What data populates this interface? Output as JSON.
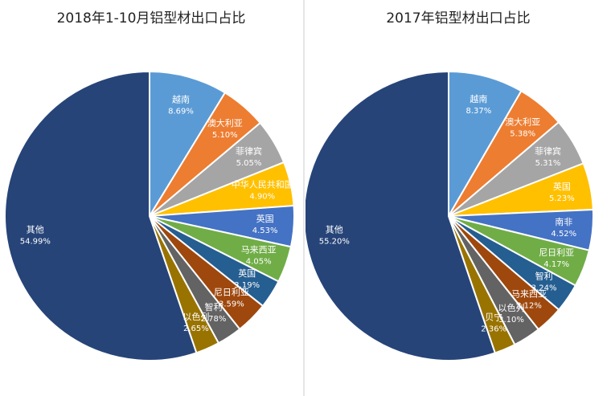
{
  "chart_data": [
    {
      "type": "pie",
      "title": "2018年1-10月铝型材出口占比",
      "slices": [
        {
          "label": "越南",
          "value": 8.69,
          "value_label": "8.69%",
          "color": "#5b9bd5"
        },
        {
          "label": "澳大利亚",
          "value": 5.1,
          "value_label": "5.10%",
          "color": "#ed7d31"
        },
        {
          "label": "菲律宾",
          "value": 5.05,
          "value_label": "5.05%",
          "color": "#a5a5a5"
        },
        {
          "label": "中华人民共和国",
          "value": 4.9,
          "value_label": "4.90%",
          "color": "#ffc000"
        },
        {
          "label": "英国",
          "value": 4.53,
          "value_label": "4.53%",
          "color": "#4472c4"
        },
        {
          "label": "马来西亚",
          "value": 4.05,
          "value_label": "4.05%",
          "color": "#70ad47"
        },
        {
          "label": "英国",
          "value": 3.19,
          "value_label": "3.19%",
          "color": "#255e91"
        },
        {
          "label": "尼日利亚",
          "value": 3.59,
          "value_label": "3.59%",
          "color": "#9e480e"
        },
        {
          "label": "智利",
          "value": 2.78,
          "value_label": "2.78%",
          "color": "#636363"
        },
        {
          "label": "以色列",
          "value": 2.65,
          "value_label": "2.65%",
          "color": "#997300"
        },
        {
          "label": "其他",
          "value": 54.99,
          "value_label": "54.99%",
          "color": "#264478"
        }
      ]
    },
    {
      "type": "pie",
      "title": "2017年铝型材出口占比",
      "slices": [
        {
          "label": "越南",
          "value": 8.37,
          "value_label": "8.37%",
          "color": "#5b9bd5"
        },
        {
          "label": "澳大利亚",
          "value": 5.38,
          "value_label": "5.38%",
          "color": "#ed7d31"
        },
        {
          "label": "菲律宾",
          "value": 5.31,
          "value_label": "5.31%",
          "color": "#a5a5a5"
        },
        {
          "label": "英国",
          "value": 5.23,
          "value_label": "5.23%",
          "color": "#ffc000"
        },
        {
          "label": "南非",
          "value": 4.52,
          "value_label": "4.52%",
          "color": "#4472c4"
        },
        {
          "label": "尼日利亚",
          "value": 4.17,
          "value_label": "4.17%",
          "color": "#70ad47"
        },
        {
          "label": "智利",
          "value": 3.24,
          "value_label": "3.24%",
          "color": "#255e91"
        },
        {
          "label": "马来西亚",
          "value": 3.12,
          "value_label": "3.12%",
          "color": "#9e480e"
        },
        {
          "label": "以色列",
          "value": 3.1,
          "value_label": "3.10%",
          "color": "#636363"
        },
        {
          "label": "贝宁",
          "value": 2.36,
          "value_label": "2.36%",
          "color": "#997300"
        },
        {
          "label": "其他",
          "value": 55.2,
          "value_label": "55.20%",
          "color": "#264478"
        }
      ]
    }
  ]
}
